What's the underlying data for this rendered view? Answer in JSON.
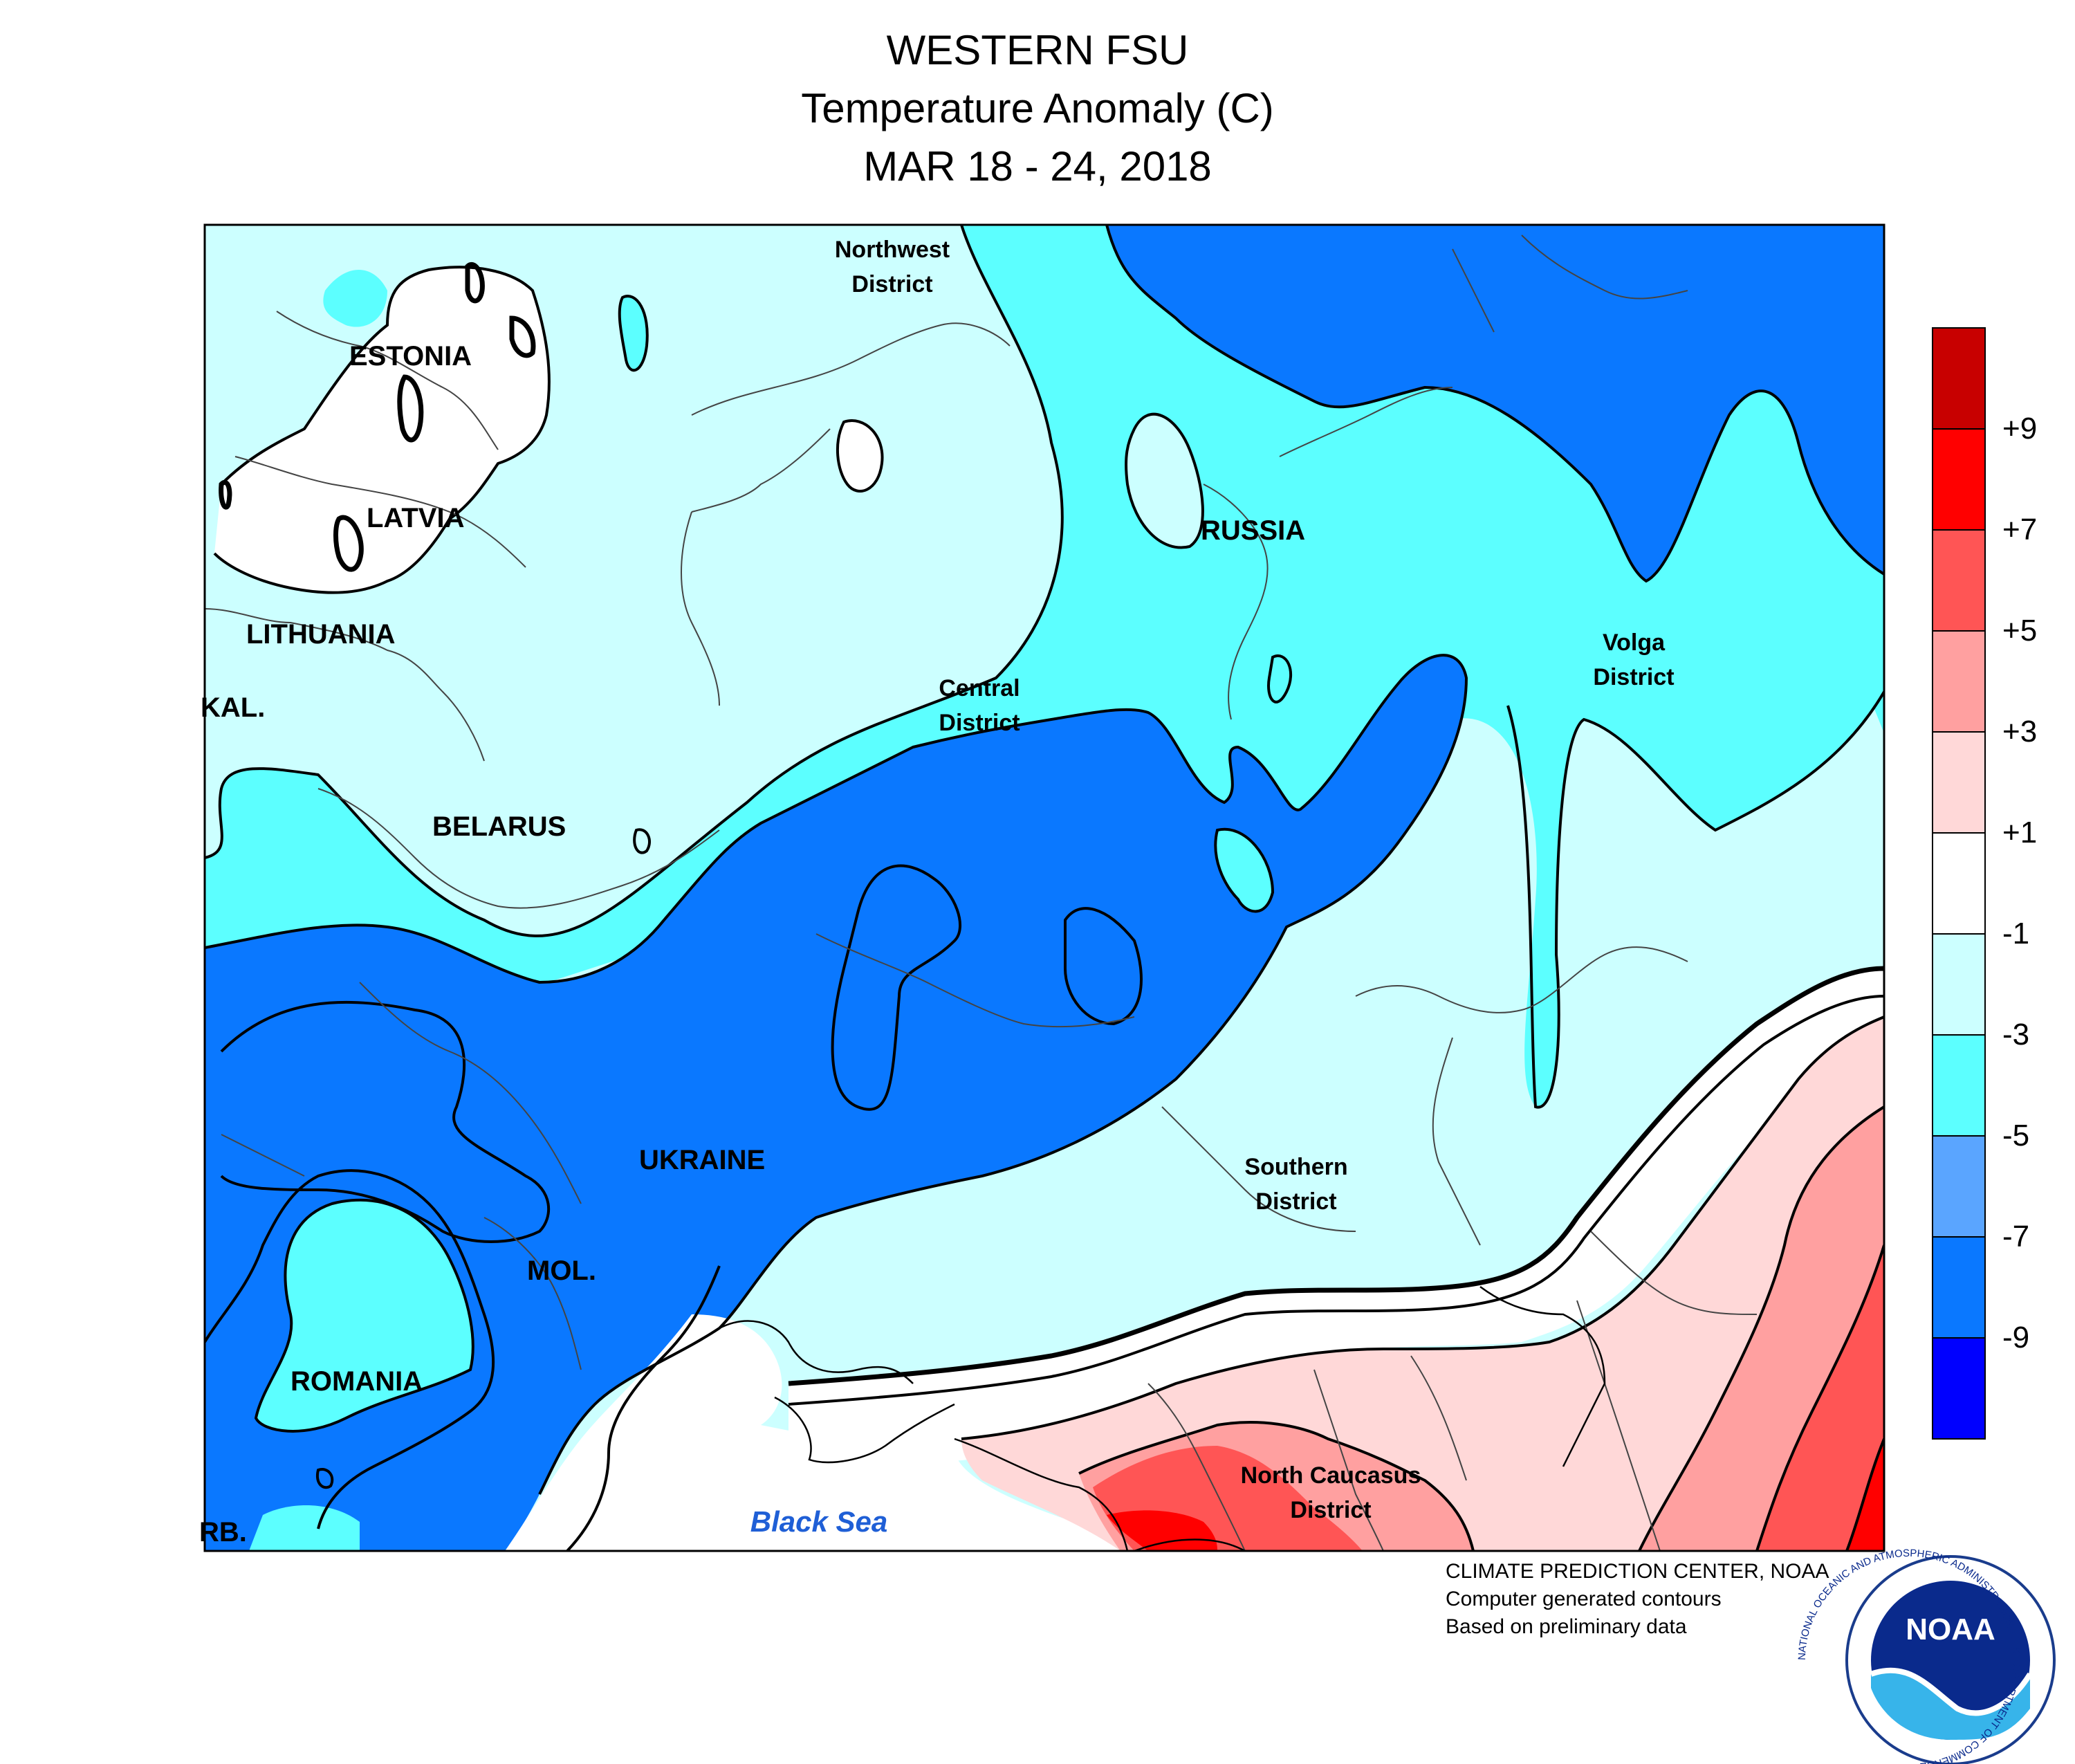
{
  "title": {
    "line1": "WESTERN FSU",
    "line2": "Temperature Anomaly (C)",
    "line3": "MAR 18 - 24, 2018"
  },
  "map_labels": {
    "estonia": "ESTONIA",
    "latvia": "LATVIA",
    "lithuania": "LITHUANIA",
    "kaliningrad": "KAL.",
    "belarus": "BELARUS",
    "ukraine": "UKRAINE",
    "moldova": "MOL.",
    "romania": "ROMANIA",
    "serbia": "RB.",
    "russia": "RUSSIA",
    "northwest_district": [
      "Northwest",
      "District"
    ],
    "central_district": [
      "Central",
      "District"
    ],
    "volga_district": [
      "Volga",
      "District"
    ],
    "southern_district": [
      "Southern",
      "District"
    ],
    "north_caucasus_district": [
      "North Caucasus",
      "District"
    ],
    "black_sea": "Black Sea"
  },
  "legend": {
    "colors": [
      "#c80000",
      "#ff0000",
      "#ff5555",
      "#ffa0a0",
      "#ffd8d8",
      "#ffffff",
      "#ccffff",
      "#5cffff",
      "#5aa5ff",
      "#0a78ff",
      "#0000ff"
    ],
    "labels": [
      "+9",
      "+7",
      "+5",
      "+3",
      "+1",
      "-1",
      "-3",
      "-5",
      "-7",
      "-9"
    ]
  },
  "credits": {
    "line1": "CLIMATE PREDICTION CENTER, NOAA",
    "line2": "Computer generated contours",
    "line3": "Based on preliminary data"
  },
  "logo": {
    "text": "NOAA",
    "ring_text": "NATIONAL OCEANIC AND ATMOSPHERIC ADMINISTRATION · U.S. DEPARTMENT OF COMMERCE"
  }
}
